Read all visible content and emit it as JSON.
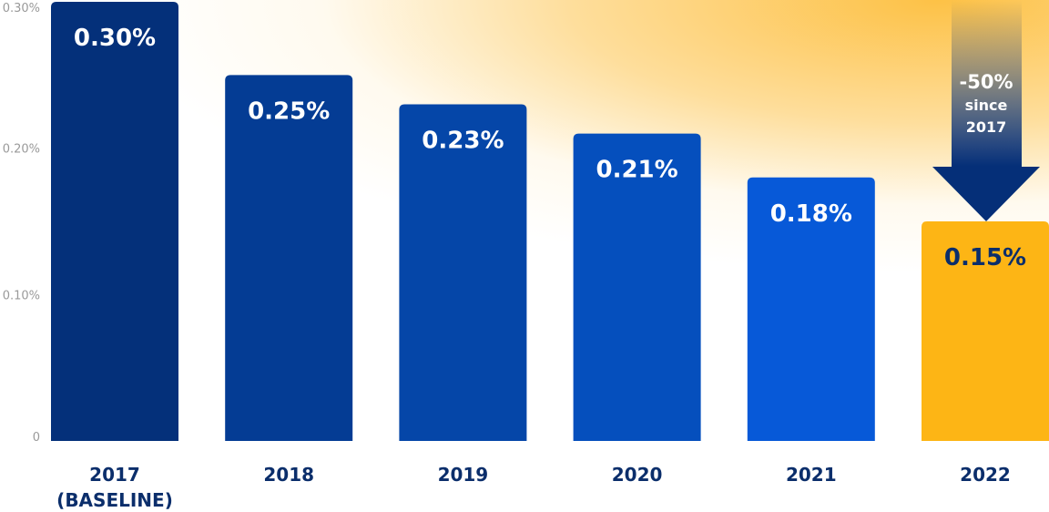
{
  "chart_data": {
    "type": "bar",
    "categories": [
      "2017",
      "2018",
      "2019",
      "2020",
      "2021",
      "2022"
    ],
    "category_sublabels": [
      "(BASELINE)",
      "",
      "",
      "",
      "",
      ""
    ],
    "values": [
      0.3,
      0.25,
      0.23,
      0.21,
      0.18,
      0.15
    ],
    "data_labels": [
      "0.30%",
      "0.25%",
      "0.23%",
      "0.21%",
      "0.18%",
      "0.15%"
    ],
    "ylim": [
      0,
      0.3
    ],
    "yticks": [
      0,
      0.1,
      0.2,
      0.3
    ],
    "ytick_labels": [
      "0",
      "0.10%",
      "0.20%",
      "0.30%"
    ],
    "grid": false,
    "colors": [
      "#04307a",
      "#043c94",
      "#0546a8",
      "#054fbd",
      "#0759d8",
      "#fdb515"
    ],
    "label_colors": [
      "#ffffff",
      "#ffffff",
      "#ffffff",
      "#ffffff",
      "#ffffff",
      "#0b2e6b"
    ],
    "annotation": {
      "lines": [
        "-50%",
        "since",
        "2017"
      ],
      "color": "#052f78"
    }
  }
}
